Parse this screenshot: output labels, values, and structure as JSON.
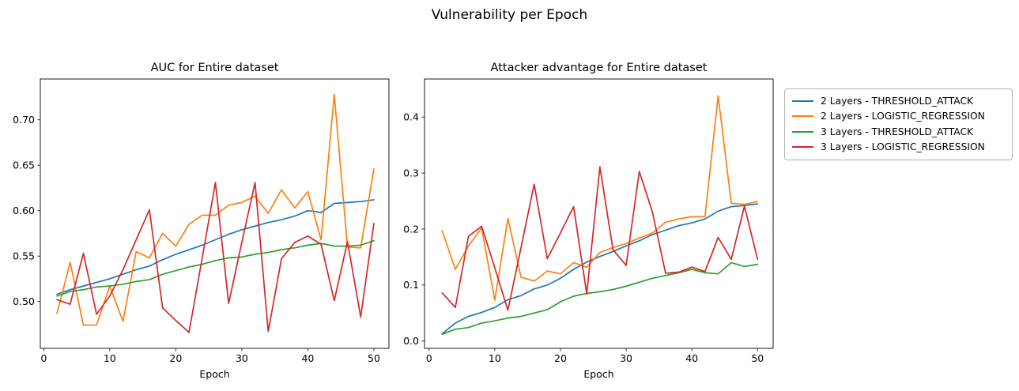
{
  "figure": {
    "suptitle": "Vulnerability per Epoch"
  },
  "legend": {
    "entries": [
      {
        "label": "2 Layers - THRESHOLD_ATTACK",
        "color": "#1f77b4"
      },
      {
        "label": "2 Layers - LOGISTIC_REGRESSION",
        "color": "#ff7f0e"
      },
      {
        "label": "3 Layers - THRESHOLD_ATTACK",
        "color": "#2ca02c"
      },
      {
        "label": "3 Layers - LOGISTIC_REGRESSION",
        "color": "#d62728"
      }
    ]
  },
  "chart_data": [
    {
      "type": "line",
      "title": "AUC for Entire dataset",
      "xlabel": "Epoch",
      "x": [
        2,
        4,
        6,
        8,
        10,
        12,
        14,
        16,
        18,
        20,
        22,
        24,
        26,
        28,
        30,
        32,
        34,
        36,
        38,
        40,
        42,
        44,
        46,
        48,
        50
      ],
      "xticks": [
        0,
        10,
        20,
        30,
        40,
        50
      ],
      "xtick_labels": [
        "0",
        "10",
        "20",
        "30",
        "40",
        "50"
      ],
      "yticks": [
        0.5,
        0.55,
        0.6,
        0.65,
        0.7
      ],
      "ytick_labels": [
        "0.50",
        "0.55",
        "0.60",
        "0.65",
        "0.70"
      ],
      "xlim": [
        -0.52,
        52.28
      ],
      "ylim": [
        0.4484,
        0.745
      ],
      "grid": false,
      "series": [
        {
          "name": "2 Layers - THRESHOLD_ATTACK",
          "color": "#1f77b4",
          "values": [
            0.508,
            0.513,
            0.517,
            0.521,
            0.525,
            0.53,
            0.535,
            0.539,
            0.546,
            0.552,
            0.557,
            0.562,
            0.568,
            0.574,
            0.579,
            0.583,
            0.587,
            0.59,
            0.594,
            0.6,
            0.598,
            0.608,
            0.609,
            0.61,
            0.612
          ]
        },
        {
          "name": "2 Layers - LOGISTIC_REGRESSION",
          "color": "#ff7f0e",
          "values": [
            0.487,
            0.543,
            0.474,
            0.474,
            0.517,
            0.478,
            0.555,
            0.548,
            0.575,
            0.561,
            0.585,
            0.595,
            0.595,
            0.606,
            0.609,
            0.616,
            0.597,
            0.623,
            0.603,
            0.621,
            0.568,
            0.728,
            0.56,
            0.559,
            0.646
          ]
        },
        {
          "name": "3 Layers - THRESHOLD_ATTACK",
          "color": "#2ca02c",
          "values": [
            0.506,
            0.511,
            0.513,
            0.516,
            0.517,
            0.519,
            0.522,
            0.524,
            0.53,
            0.534,
            0.538,
            0.541,
            0.545,
            0.548,
            0.549,
            0.552,
            0.554,
            0.557,
            0.559,
            0.562,
            0.564,
            0.561,
            0.561,
            0.562,
            0.567
          ]
        },
        {
          "name": "3 Layers - LOGISTIC_REGRESSION",
          "color": "#d62728",
          "values": [
            0.502,
            0.497,
            0.553,
            0.486,
            0.506,
            0.535,
            0.568,
            0.601,
            0.493,
            0.479,
            0.466,
            0.548,
            0.631,
            0.498,
            0.565,
            0.631,
            0.467,
            0.547,
            0.565,
            0.572,
            0.563,
            0.501,
            0.566,
            0.483,
            0.586
          ]
        }
      ]
    },
    {
      "type": "line",
      "title": "Attacker advantage for Entire dataset",
      "xlabel": "Epoch",
      "x": [
        2,
        4,
        6,
        8,
        10,
        12,
        14,
        16,
        18,
        20,
        22,
        24,
        26,
        28,
        30,
        32,
        34,
        36,
        38,
        40,
        42,
        44,
        46,
        48,
        50
      ],
      "xticks": [
        0,
        10,
        20,
        30,
        40,
        50
      ],
      "xtick_labels": [
        "0",
        "10",
        "20",
        "30",
        "40",
        "50"
      ],
      "yticks": [
        0.0,
        0.1,
        0.2,
        0.3,
        0.4
      ],
      "ytick_labels": [
        "0.0",
        "0.1",
        "0.2",
        "0.3",
        "0.4"
      ],
      "xlim": [
        -0.69,
        52.37
      ],
      "ylim": [
        -0.0131,
        0.468
      ],
      "grid": false,
      "series": [
        {
          "name": "2 Layers - THRESHOLD_ATTACK",
          "color": "#1f77b4",
          "values": [
            0.013,
            0.032,
            0.044,
            0.051,
            0.06,
            0.074,
            0.081,
            0.093,
            0.1,
            0.112,
            0.128,
            0.141,
            0.151,
            0.16,
            0.17,
            0.179,
            0.19,
            0.198,
            0.206,
            0.211,
            0.218,
            0.232,
            0.24,
            0.242,
            0.245
          ]
        },
        {
          "name": "2 Layers - LOGISTIC_REGRESSION",
          "color": "#ff7f0e",
          "values": [
            0.197,
            0.128,
            0.17,
            0.202,
            0.073,
            0.219,
            0.114,
            0.107,
            0.125,
            0.12,
            0.14,
            0.132,
            0.158,
            0.167,
            0.174,
            0.184,
            0.193,
            0.212,
            0.218,
            0.222,
            0.222,
            0.438,
            0.246,
            0.244,
            0.249
          ]
        },
        {
          "name": "3 Layers - THRESHOLD_ATTACK",
          "color": "#2ca02c",
          "values": [
            0.012,
            0.021,
            0.024,
            0.032,
            0.036,
            0.041,
            0.044,
            0.05,
            0.056,
            0.07,
            0.08,
            0.085,
            0.088,
            0.092,
            0.098,
            0.105,
            0.112,
            0.117,
            0.122,
            0.128,
            0.122,
            0.12,
            0.14,
            0.133,
            0.137
          ]
        },
        {
          "name": "3 Layers - LOGISTIC_REGRESSION",
          "color": "#d62728",
          "values": [
            0.086,
            0.06,
            0.187,
            0.205,
            0.131,
            0.055,
            0.167,
            0.28,
            0.147,
            0.193,
            0.24,
            0.084,
            0.311,
            0.163,
            0.135,
            0.303,
            0.23,
            0.121,
            0.123,
            0.132,
            0.124,
            0.185,
            0.146,
            0.241,
            0.146
          ]
        }
      ]
    }
  ]
}
